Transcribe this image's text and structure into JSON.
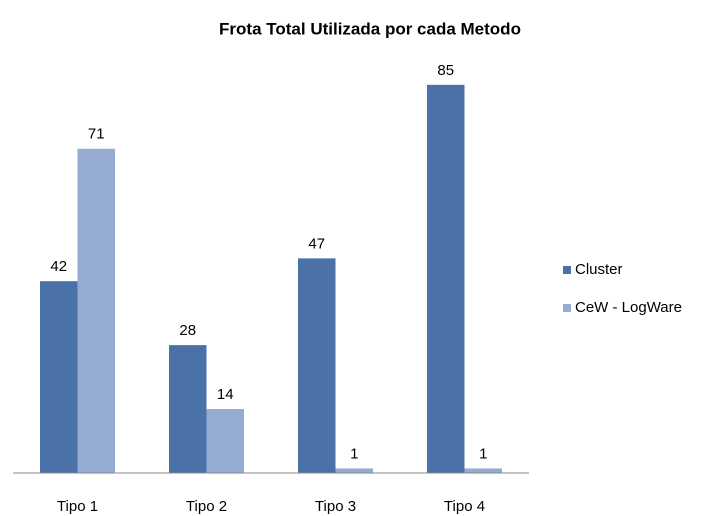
{
  "chart_data": {
    "type": "bar",
    "title": "Frota Total Utilizada por cada Metodo",
    "categories": [
      "Tipo 1",
      "Tipo 2",
      "Tipo 3",
      "Tipo 4"
    ],
    "series": [
      {
        "name": "Cluster",
        "color": "#4a72a8",
        "values": [
          42,
          28,
          47,
          85
        ]
      },
      {
        "name": "CeW - LogWare",
        "color": "#95abd3",
        "values": [
          71,
          14,
          1,
          1
        ]
      }
    ],
    "ylim": [
      0,
      90
    ],
    "legend": "right"
  }
}
